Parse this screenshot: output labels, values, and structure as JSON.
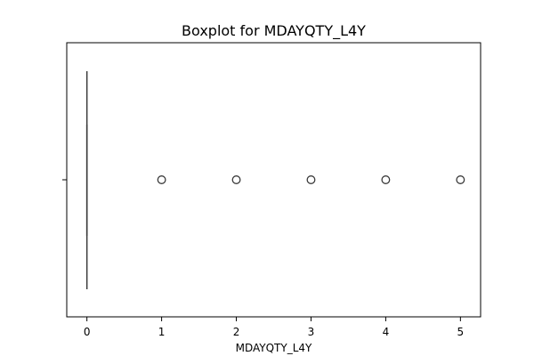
{
  "chart_data": {
    "type": "boxplot",
    "title": "Boxplot for MDAYQTY_L4Y",
    "xlabel": "MDAYQTY_L4Y",
    "ylabel": "",
    "xlim": [
      -0.27,
      5.27
    ],
    "x_ticks": [
      0,
      1,
      2,
      3,
      4,
      5
    ],
    "x_tick_labels": [
      "0",
      "1",
      "2",
      "3",
      "4",
      "5"
    ],
    "orientation": "horizontal",
    "grid": false,
    "box": {
      "min": 0,
      "q1": 0,
      "median": 0,
      "q3": 0,
      "max": 0
    },
    "outliers": [
      1,
      2,
      3,
      4,
      5
    ],
    "colors": {
      "axes": "#000000",
      "box": "#3a3a3a",
      "outlier_edge": "#3a3a3a"
    }
  }
}
